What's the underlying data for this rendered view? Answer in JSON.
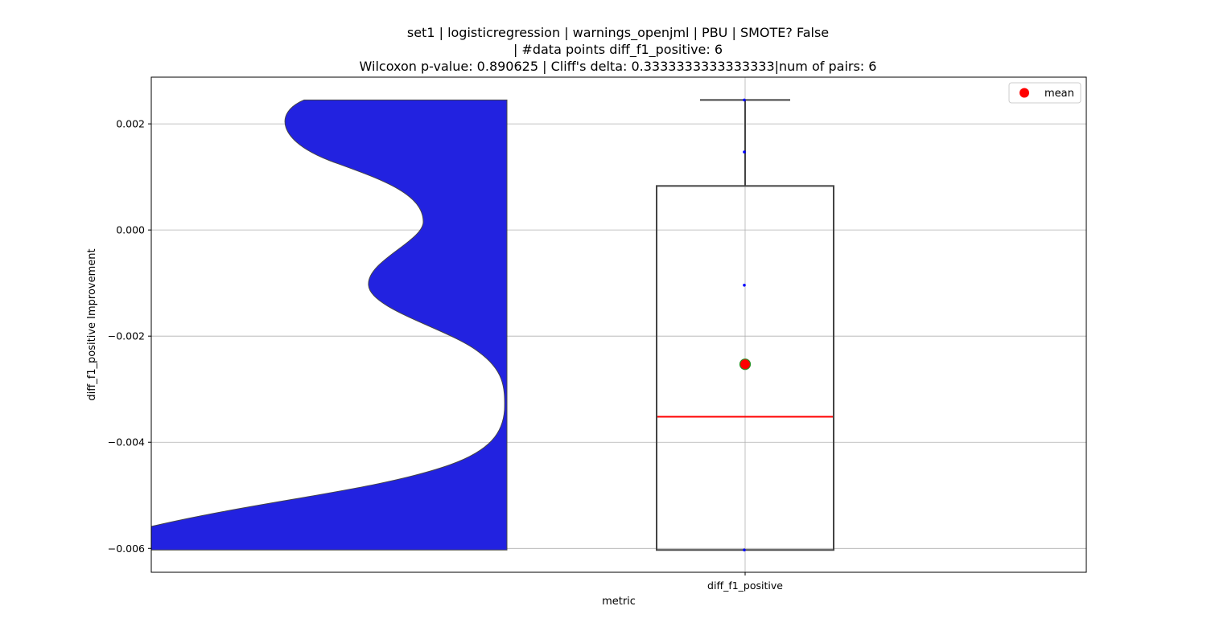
{
  "chart_data": {
    "type": "box+violin",
    "title_lines": [
      "set1 | logisticregression | warnings_openjml | PBU | SMOTE? False",
      "| #data points diff_f1_positive: 6",
      "Wilcoxon p-value: 0.890625 | Cliff's delta: 0.3333333333333333|num of pairs: 6"
    ],
    "xlabel": "metric",
    "ylabel": "diff_f1_positive Improvement",
    "categories": [
      "diff_f1_positive"
    ],
    "ylim": [
      -0.00645,
      0.00288
    ],
    "yticks": [
      0.002,
      0.0,
      -0.002,
      -0.004,
      -0.006
    ],
    "ytick_labels": [
      "0.002",
      "0.000",
      "−0.002",
      "−0.004",
      "−0.006"
    ],
    "grid": true,
    "legend": {
      "placement": "top-right",
      "entries": [
        {
          "label": "mean",
          "color": "#ff0000"
        }
      ]
    },
    "box": {
      "whisker_low": -0.00603,
      "q1": -0.00603,
      "median": -0.00352,
      "q3": 0.00083,
      "whisker_high": 0.00245,
      "mean": -0.00253
    },
    "points": [
      0.00245,
      0.00147,
      -0.00104,
      -0.00603
    ],
    "violin_color": "#2222e0",
    "median_color": "#ff0000",
    "mean_marker_color": "#ff0000",
    "mean_marker_edge": "#2e8b22",
    "point_color": "#0000ff"
  }
}
